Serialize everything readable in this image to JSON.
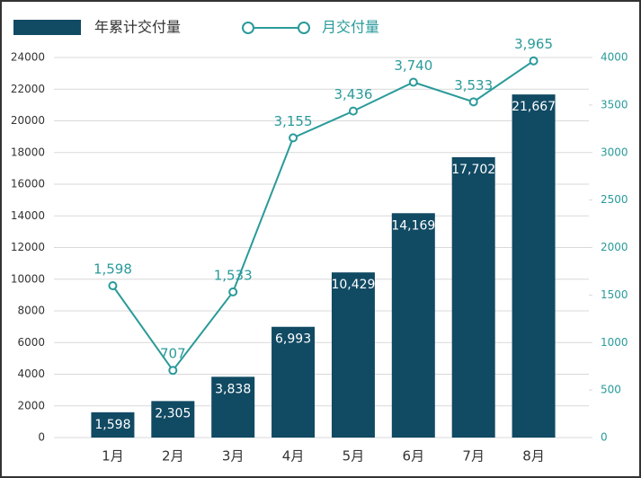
{
  "chart_data": {
    "type": "bar-line",
    "categories": [
      "1月",
      "2月",
      "3月",
      "4月",
      "5月",
      "6月",
      "7月",
      "8月"
    ],
    "series": [
      {
        "name": "年累计交付量",
        "type": "bar",
        "color": "#114a63",
        "axis": "y",
        "values": [
          1598,
          2305,
          3838,
          6993,
          10429,
          14169,
          17702,
          21667
        ],
        "value_labels": [
          "1,598",
          "2,305",
          "3,838",
          "6,993",
          "10,429",
          "14,169",
          "17,702",
          "21,667"
        ]
      },
      {
        "name": "月交付量",
        "type": "line",
        "color": "#2a9a9a",
        "axis": "y2",
        "values": [
          1598,
          707,
          1533,
          3155,
          3436,
          3740,
          3533,
          3965
        ],
        "value_labels": [
          "1,598",
          "707",
          "1,533",
          "3,155",
          "3,436",
          "3,740",
          "3,533",
          "3,965"
        ]
      }
    ],
    "ylim": [
      0,
      24000
    ],
    "yticks": [
      0,
      2000,
      4000,
      6000,
      8000,
      10000,
      12000,
      14000,
      16000,
      18000,
      20000,
      22000,
      24000
    ],
    "y2lim": [
      0,
      4000
    ],
    "y2ticks": [
      0,
      500,
      1000,
      1500,
      2000,
      2500,
      3000,
      3500,
      4000
    ],
    "grid": true
  }
}
